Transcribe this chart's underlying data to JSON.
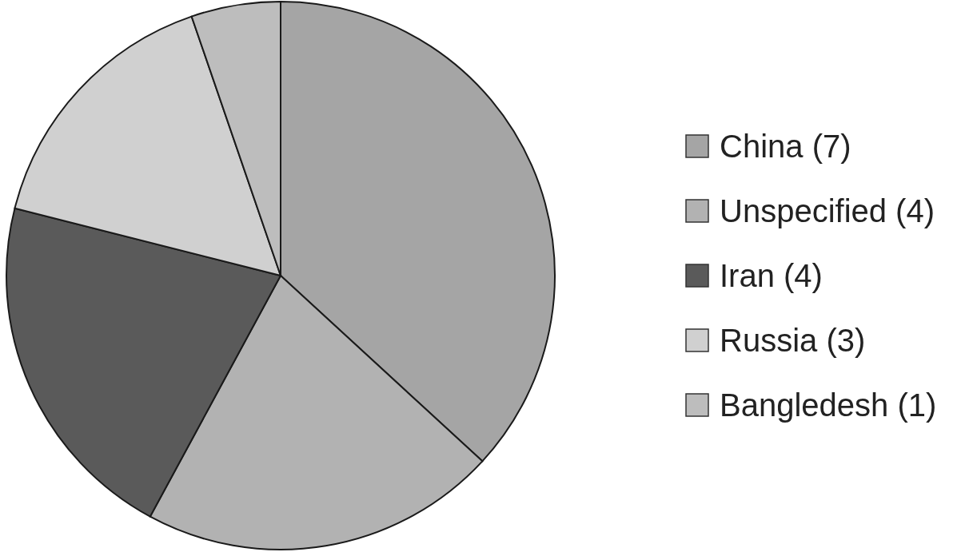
{
  "chart_data": {
    "type": "pie",
    "categories": [
      "China (7)",
      "Unspecified (4)",
      "Iran (4)",
      "Russia (3)",
      "Bangledesh (1)"
    ],
    "values": [
      7,
      4,
      4,
      3,
      1
    ],
    "colors": [
      "#a5a5a5",
      "#b2b2b2",
      "#5a5a5a",
      "#d0d0d0",
      "#bdbdbd"
    ],
    "legend": "right"
  }
}
